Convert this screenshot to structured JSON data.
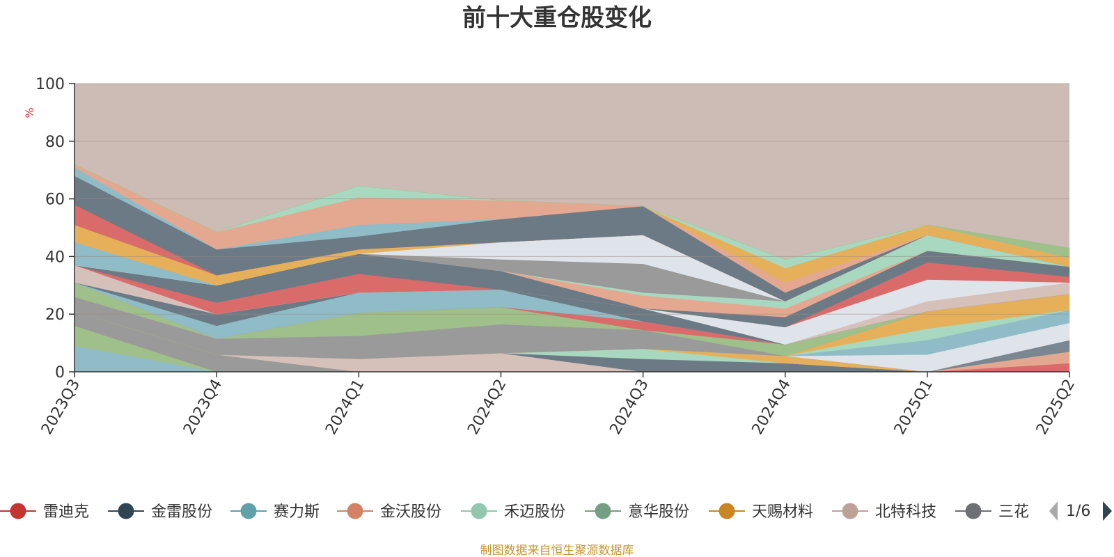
{
  "chart_data": {
    "type": "area",
    "stacked": true,
    "title": "前十大重仓股变化",
    "y_unit": "%",
    "ylim": [
      0,
      100
    ],
    "yticks": [
      0,
      20,
      40,
      60,
      80,
      100
    ],
    "categories": [
      "2023Q3",
      "2023Q4",
      "2024Q1",
      "2024Q2",
      "2024Q3",
      "2024Q4",
      "2025Q1",
      "2025Q2"
    ],
    "grid": true,
    "background_color": "#cdbcb6",
    "series": [
      {
        "color": "#8fbcc7",
        "values": [
          9.0,
          0.0,
          0.0,
          0.0,
          0.0,
          0.0,
          0.0,
          0.0
        ]
      },
      {
        "color": "#9fc08a",
        "values": [
          7.0,
          0.0,
          0.0,
          0.0,
          0.0,
          0.0,
          0.0,
          0.0
        ]
      },
      {
        "color": "#9a9a9a",
        "values": [
          5.0,
          6.0,
          0.0,
          0.0,
          0.0,
          0.0,
          0.0,
          0.0
        ]
      },
      {
        "color": "#d6c0ba",
        "values": [
          0.0,
          0.0,
          4.5,
          6.5,
          0.0,
          0.0,
          0.0,
          0.0
        ]
      },
      {
        "color": "#6c7a85",
        "values": [
          0.0,
          0.0,
          0.0,
          0.0,
          4.5,
          3.0,
          0.0,
          0.0
        ]
      },
      {
        "color": "#a8d8c0",
        "values": [
          0.0,
          0.0,
          0.0,
          0.0,
          3.5,
          0.0,
          0.0,
          0.0
        ]
      },
      {
        "color": "#e6b05a",
        "values": [
          0.0,
          0.0,
          0.0,
          0.0,
          0.0,
          2.5,
          0.0,
          0.0
        ]
      },
      {
        "color": "#d96b6b",
        "values": [
          0.0,
          0.0,
          0.0,
          0.0,
          0.0,
          0.0,
          0.0,
          3.0
        ]
      },
      {
        "color": "#e4a890",
        "values": [
          0.0,
          0.0,
          0.0,
          0.0,
          0.0,
          0.0,
          0.0,
          4.0
        ]
      },
      {
        "color": "#7a8790",
        "values": [
          0.0,
          0.0,
          0.0,
          0.0,
          0.0,
          0.0,
          0.0,
          4.0
        ]
      },
      {
        "color": "#dfe3ea",
        "values": [
          0.0,
          0.0,
          0.0,
          0.0,
          0.0,
          0.0,
          6.0,
          6.0
        ]
      },
      {
        "color": "#8fbcc7",
        "values": [
          0.0,
          0.0,
          0.0,
          0.0,
          0.0,
          0.0,
          5.0,
          4.5
        ]
      },
      {
        "color": "#a8d8c0",
        "values": [
          0.0,
          0.0,
          0.0,
          0.0,
          0.0,
          0.0,
          4.0,
          0.0
        ]
      },
      {
        "color": "#e6b05a",
        "values": [
          0.0,
          0.0,
          0.0,
          0.0,
          0.0,
          0.0,
          6.0,
          5.5
        ]
      },
      {
        "color": "#9a9a9a",
        "values": [
          5.0,
          5.5,
          8.0,
          10.0,
          6.5,
          0.0,
          0.0,
          0.0
        ]
      },
      {
        "color": "#9fc08a",
        "values": [
          5.0,
          0.0,
          8.0,
          6.0,
          0.0,
          4.0,
          0.0,
          0.0
        ]
      },
      {
        "color": "#d96b6b",
        "values": [
          0.0,
          0.0,
          0.0,
          0.0,
          3.0,
          0.0,
          0.0,
          0.0
        ]
      },
      {
        "color": "#8fbcc7",
        "values": [
          0.0,
          4.5,
          7.0,
          6.0,
          0.0,
          0.0,
          0.0,
          0.0
        ]
      },
      {
        "color": "#6c7a85",
        "values": [
          0.0,
          4.0,
          0.0,
          0.0,
          4.5,
          0.0,
          0.0,
          0.0
        ]
      },
      {
        "color": "#d6c0ba",
        "values": [
          6.0,
          0.0,
          0.0,
          0.0,
          0.0,
          0.0,
          3.5,
          4.0
        ]
      },
      {
        "color": "#dfe3ea",
        "values": [
          0.0,
          0.0,
          0.0,
          0.0,
          0.0,
          6.0,
          7.5,
          0.0
        ]
      },
      {
        "color": "#d96b6b",
        "values": [
          0.0,
          4.0,
          6.5,
          0.0,
          0.0,
          0.0,
          6.0,
          2.0
        ]
      },
      {
        "color": "#6c7a85",
        "values": [
          0.0,
          6.0,
          7.0,
          6.5,
          0.0,
          3.5,
          4.0,
          3.5
        ]
      },
      {
        "color": "#e4a890",
        "values": [
          0.0,
          0.0,
          0.0,
          0.0,
          4.5,
          3.0,
          0.0,
          0.0
        ]
      },
      {
        "color": "#a8d8c0",
        "values": [
          0.0,
          0.0,
          0.0,
          0.0,
          1.0,
          2.5,
          5.5,
          0.0
        ]
      },
      {
        "color": "#9a9a9a",
        "values": [
          0.0,
          0.0,
          0.0,
          4.0,
          10.0,
          0.0,
          0.0,
          0.0
        ]
      },
      {
        "color": "#dfe3ea",
        "values": [
          0.0,
          0.0,
          0.0,
          6.0,
          10.0,
          0.0,
          0.0,
          0.0
        ]
      },
      {
        "color": "#8fbcc7",
        "values": [
          8.0,
          0.0,
          0.0,
          0.0,
          0.0,
          0.0,
          0.0,
          0.0
        ]
      },
      {
        "color": "#e6b05a",
        "values": [
          6.0,
          3.5,
          1.5,
          0.0,
          0.0,
          0.0,
          0.0,
          0.0
        ]
      },
      {
        "color": "#d96b6b",
        "values": [
          7.0,
          0.0,
          0.0,
          0.0,
          0.0,
          0.0,
          0.0,
          0.0
        ]
      },
      {
        "color": "#6c7a85",
        "values": [
          10.0,
          9.0,
          4.5,
          8.0,
          10.0,
          3.0,
          0.0,
          0.0
        ]
      },
      {
        "color": "#8fbcc7",
        "values": [
          3.0,
          0.0,
          4.0,
          0.0,
          0.0,
          0.0,
          0.0,
          0.0
        ]
      },
      {
        "color": "#e4a890",
        "values": [
          1.0,
          6.0,
          9.5,
          6.5,
          0.0,
          3.5,
          0.0,
          0.0
        ]
      },
      {
        "color": "#e6b05a",
        "values": [
          0.0,
          0.0,
          0.0,
          0.0,
          0.0,
          5.0,
          3.5,
          3.0
        ]
      },
      {
        "color": "#a8d8c0",
        "values": [
          0.0,
          0.0,
          4.0,
          0.0,
          0.0,
          3.0,
          0.0,
          0.0
        ]
      },
      {
        "color": "#9fc08a",
        "values": [
          0.0,
          0.0,
          0.0,
          0.0,
          0.0,
          0.0,
          0.0,
          3.5
        ]
      }
    ],
    "legend": {
      "position": "bottom",
      "items": [
        {
          "name": "雷迪克",
          "color": "#c23531"
        },
        {
          "name": "金雷股份",
          "color": "#2f4554"
        },
        {
          "name": "赛力斯",
          "color": "#61a0a8"
        },
        {
          "name": "金沃股份",
          "color": "#d48265"
        },
        {
          "name": "禾迈股份",
          "color": "#91c7ae"
        },
        {
          "name": "意华股份",
          "color": "#749f83"
        },
        {
          "name": "天赐材料",
          "color": "#ca8622"
        },
        {
          "name": "北特科技",
          "color": "#bda29a"
        },
        {
          "name": "三花智控",
          "color": "#6e7074"
        }
      ],
      "visible_last_text": "三花",
      "page": "1/6"
    },
    "source": "制图数据来自恒生聚源数据库"
  }
}
